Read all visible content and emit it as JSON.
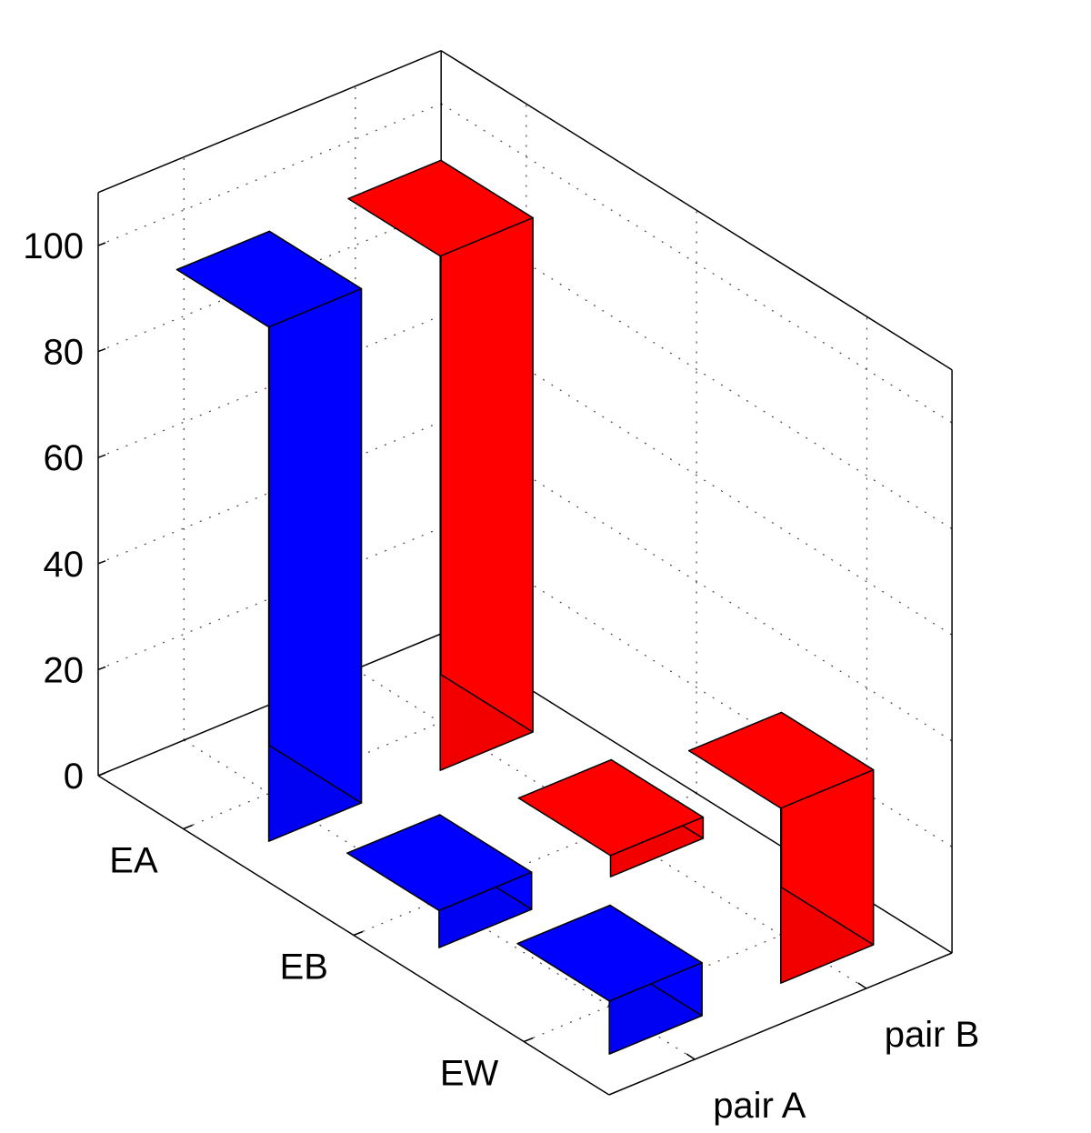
{
  "chart_data": {
    "type": "bar3d",
    "z_ticks": [
      0,
      20,
      40,
      60,
      80,
      100
    ],
    "zlim": [
      0,
      110
    ],
    "row_categories": [
      "EA",
      "EB",
      "EW"
    ],
    "column_categories": [
      "pair A",
      "pair B"
    ],
    "series": [
      {
        "column": "pair A",
        "values": [
          97,
          7,
          10
        ],
        "color": "#0000ff"
      },
      {
        "column": "pair B",
        "values": [
          97,
          4,
          33
        ],
        "color": "#ff0000"
      }
    ],
    "grid": true,
    "view": "3d-perspective"
  }
}
